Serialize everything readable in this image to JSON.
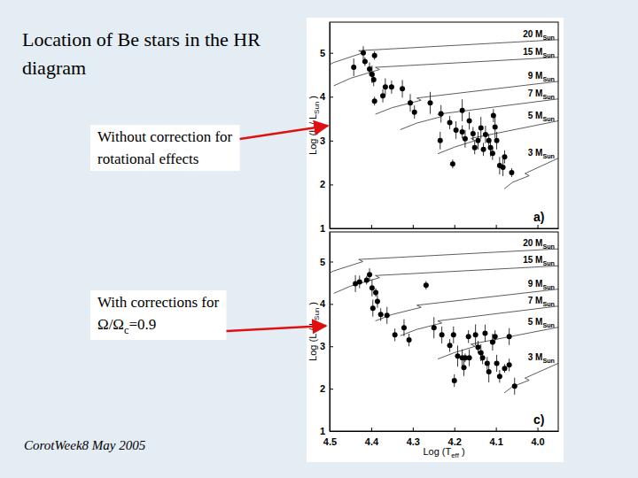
{
  "slide": {
    "title": [
      "Location of Be stars in the HR",
      "diagram"
    ],
    "callouts": [
      [
        [
          "Without correction for"
        ],
        [
          "rotational effects"
        ]
      ],
      [
        [
          "With corrections for"
        ],
        [
          "Ω/Ω",
          {
            "sub": "c"
          },
          "=0.9"
        ]
      ]
    ],
    "footer": "CorotWeek8 May 2005"
  },
  "chart_data": [
    {
      "type": "scatter",
      "marker": "circle",
      "color": "#000000",
      "tick_labels": "y",
      "annotations": [
        "a)"
      ],
      "y_label": [
        "Log (L / L",
        {
          "sub": "Sun"
        },
        " )"
      ],
      "xlim": [
        4.5,
        3.95
      ],
      "ylim": [
        1,
        5.7
      ],
      "xticks": [
        4.5,
        4.4,
        4.3,
        4.2,
        4.1,
        {
          "value": 4.0,
          "label": "4.0"
        }
      ],
      "yticks": [
        1,
        2,
        3,
        4,
        5
      ],
      "x": [
        4.442,
        4.419,
        4.415,
        4.404,
        4.398,
        4.392,
        4.394,
        4.366,
        4.351,
        4.325,
        4.392,
        4.372,
        4.306,
        4.296,
        4.258,
        4.232,
        4.211,
        4.196,
        4.181,
        4.181,
        4.174,
        4.204,
        4.164,
        4.155,
        4.143,
        4.136,
        4.13,
        4.125,
        4.117,
        4.113,
        4.108,
        4.102,
        4.098,
        4.106,
        4.091,
        4.079,
        4.062,
        4.083,
        4.151,
        4.234
      ],
      "values": [
        4.67,
        5.0,
        4.8,
        4.63,
        4.51,
        4.94,
        4.39,
        4.22,
        4.22,
        4.18,
        3.9,
        4.02,
        3.86,
        3.65,
        3.86,
        3.61,
        3.41,
        3.24,
        3.69,
        3.2,
        3.04,
        2.47,
        3.45,
        3.16,
        3.0,
        3.29,
        2.8,
        3.14,
        3.0,
        2.84,
        2.71,
        3.31,
        3.0,
        3.57,
        2.43,
        2.63,
        2.27,
        2.39,
        2.84,
        3.0
      ],
      "y_error": [
        0.2,
        0.15,
        0.1,
        0.15,
        0.2,
        0.1,
        0.15,
        0.2,
        0.15,
        0.2,
        0.1,
        0.15,
        0.2,
        0.15,
        0.25,
        0.2,
        0.15,
        0.2,
        0.25,
        0.15,
        0.2,
        0.1,
        0.2,
        0.15,
        0.2,
        0.25,
        0.15,
        0.2,
        0.15,
        0.2,
        0.15,
        0.25,
        0.2,
        0.15,
        0.2,
        0.15,
        0.1,
        0.2,
        0.15,
        0.2
      ],
      "tracks": [
        {
          "label": [
            "20 M",
            {
              "sub": "Sun"
            }
          ],
          "line_style": "solid",
          "x": [
            4.53,
            4.49,
            4.42,
            4.43,
            3.95
          ],
          "values": [
            4.6,
            4.78,
            5.0,
            5.05,
            5.3
          ]
        },
        {
          "label": [
            "15 M",
            {
              "sub": "Sun"
            }
          ],
          "line_style": "solid",
          "x": [
            4.49,
            4.45,
            4.38,
            4.39,
            3.95
          ],
          "values": [
            4.25,
            4.42,
            4.62,
            4.67,
            4.9
          ]
        },
        {
          "label": [
            "9 M",
            {
              "sub": "Sun"
            }
          ],
          "line_style": "solid",
          "x": [
            4.39,
            4.35,
            4.28,
            4.29,
            3.95
          ],
          "values": [
            3.6,
            3.75,
            3.92,
            3.97,
            4.35
          ]
        },
        {
          "label": [
            "7 M",
            {
              "sub": "Sun"
            }
          ],
          "line_style": "solid",
          "x": [
            4.33,
            4.29,
            4.23,
            4.24,
            3.95
          ],
          "values": [
            3.25,
            3.4,
            3.55,
            3.6,
            3.95
          ]
        },
        {
          "label": [
            "5 M",
            {
              "sub": "Sun"
            }
          ],
          "line_style": "solid",
          "x": [
            4.24,
            4.2,
            4.15,
            4.16,
            3.95
          ],
          "values": [
            2.7,
            2.85,
            3.0,
            3.05,
            3.45
          ]
        },
        {
          "label": [
            "3 M",
            {
              "sub": "Sun"
            }
          ],
          "line_style": "solid",
          "x": [
            4.08,
            4.06,
            4.02,
            4.03,
            3.95
          ],
          "values": [
            1.9,
            2.05,
            2.2,
            2.25,
            2.6
          ]
        }
      ]
    },
    {
      "type": "scatter",
      "marker": "circle",
      "color": "#000000",
      "tick_labels": true,
      "annotations": [
        "c)"
      ],
      "y_label": [
        "Log (L / L",
        {
          "sub": "Sun"
        },
        " )"
      ],
      "x_label": [
        "Log (T",
        {
          "sub": "eff"
        },
        " )"
      ],
      "xlim": [
        4.5,
        3.95
      ],
      "ylim": [
        1,
        5.7
      ],
      "xticks": [
        4.5,
        4.4,
        4.3,
        4.2,
        4.1,
        {
          "value": 4.0,
          "label": "4.0"
        }
      ],
      "yticks": [
        1,
        2,
        3,
        4,
        5
      ],
      "x": [
        4.438,
        4.428,
        4.411,
        4.404,
        4.398,
        4.389,
        4.385,
        4.396,
        4.377,
        4.362,
        4.268,
        4.343,
        4.321,
        4.309,
        4.249,
        4.23,
        4.211,
        4.202,
        4.192,
        4.2,
        4.181,
        4.174,
        4.177,
        4.166,
        4.164,
        4.149,
        4.143,
        4.136,
        4.132,
        4.126,
        4.121,
        4.117,
        4.108,
        4.102,
        4.098,
        4.091,
        4.079,
        4.068,
        4.068,
        4.055
      ],
      "values": [
        4.48,
        4.52,
        4.56,
        4.69,
        4.38,
        4.27,
        4.06,
        3.9,
        3.75,
        3.73,
        4.44,
        3.27,
        3.44,
        3.15,
        3.44,
        3.27,
        3.02,
        3.27,
        2.77,
        2.19,
        2.73,
        2.73,
        2.5,
        3.23,
        2.73,
        3.27,
        2.98,
        2.85,
        2.73,
        3.31,
        2.6,
        2.4,
        3.1,
        3.23,
        2.6,
        2.29,
        2.48,
        3.23,
        2.56,
        2.06
      ],
      "y_error": [
        0.2,
        0.15,
        0.1,
        0.15,
        0.2,
        0.1,
        0.15,
        0.2,
        0.15,
        0.2,
        0.1,
        0.15,
        0.2,
        0.15,
        0.25,
        0.2,
        0.15,
        0.2,
        0.25,
        0.15,
        0.2,
        0.1,
        0.2,
        0.15,
        0.2,
        0.25,
        0.15,
        0.2,
        0.15,
        0.2,
        0.15,
        0.25,
        0.2,
        0.15,
        0.2,
        0.15,
        0.1,
        0.2,
        0.15,
        0.2
      ],
      "tracks": [
        {
          "label": [
            "20 M",
            {
              "sub": "Sun"
            }
          ],
          "line_style": "solid",
          "x": [
            4.53,
            4.49,
            4.42,
            4.43,
            3.95
          ],
          "values": [
            4.6,
            4.78,
            5.0,
            5.05,
            5.3
          ]
        },
        {
          "label": [
            "15 M",
            {
              "sub": "Sun"
            }
          ],
          "line_style": "solid",
          "x": [
            4.49,
            4.45,
            4.38,
            4.39,
            3.95
          ],
          "values": [
            4.25,
            4.42,
            4.62,
            4.67,
            4.9
          ]
        },
        {
          "label": [
            "9 M",
            {
              "sub": "Sun"
            }
          ],
          "line_style": "solid",
          "x": [
            4.39,
            4.35,
            4.28,
            4.29,
            3.95
          ],
          "values": [
            3.6,
            3.75,
            3.92,
            3.97,
            4.35
          ]
        },
        {
          "label": [
            "7 M",
            {
              "sub": "Sun"
            }
          ],
          "line_style": "solid",
          "x": [
            4.33,
            4.29,
            4.23,
            4.24,
            3.95
          ],
          "values": [
            3.25,
            3.4,
            3.55,
            3.6,
            3.95
          ]
        },
        {
          "label": [
            "5 M",
            {
              "sub": "Sun"
            }
          ],
          "line_style": "solid",
          "x": [
            4.24,
            4.2,
            4.15,
            4.16,
            3.95
          ],
          "values": [
            2.7,
            2.85,
            3.0,
            3.05,
            3.45
          ]
        },
        {
          "label": [
            "3 M",
            {
              "sub": "Sun"
            }
          ],
          "line_style": "solid",
          "x": [
            4.08,
            4.06,
            4.02,
            4.03,
            3.95
          ],
          "values": [
            1.9,
            2.05,
            2.2,
            2.25,
            2.6
          ]
        }
      ]
    }
  ]
}
